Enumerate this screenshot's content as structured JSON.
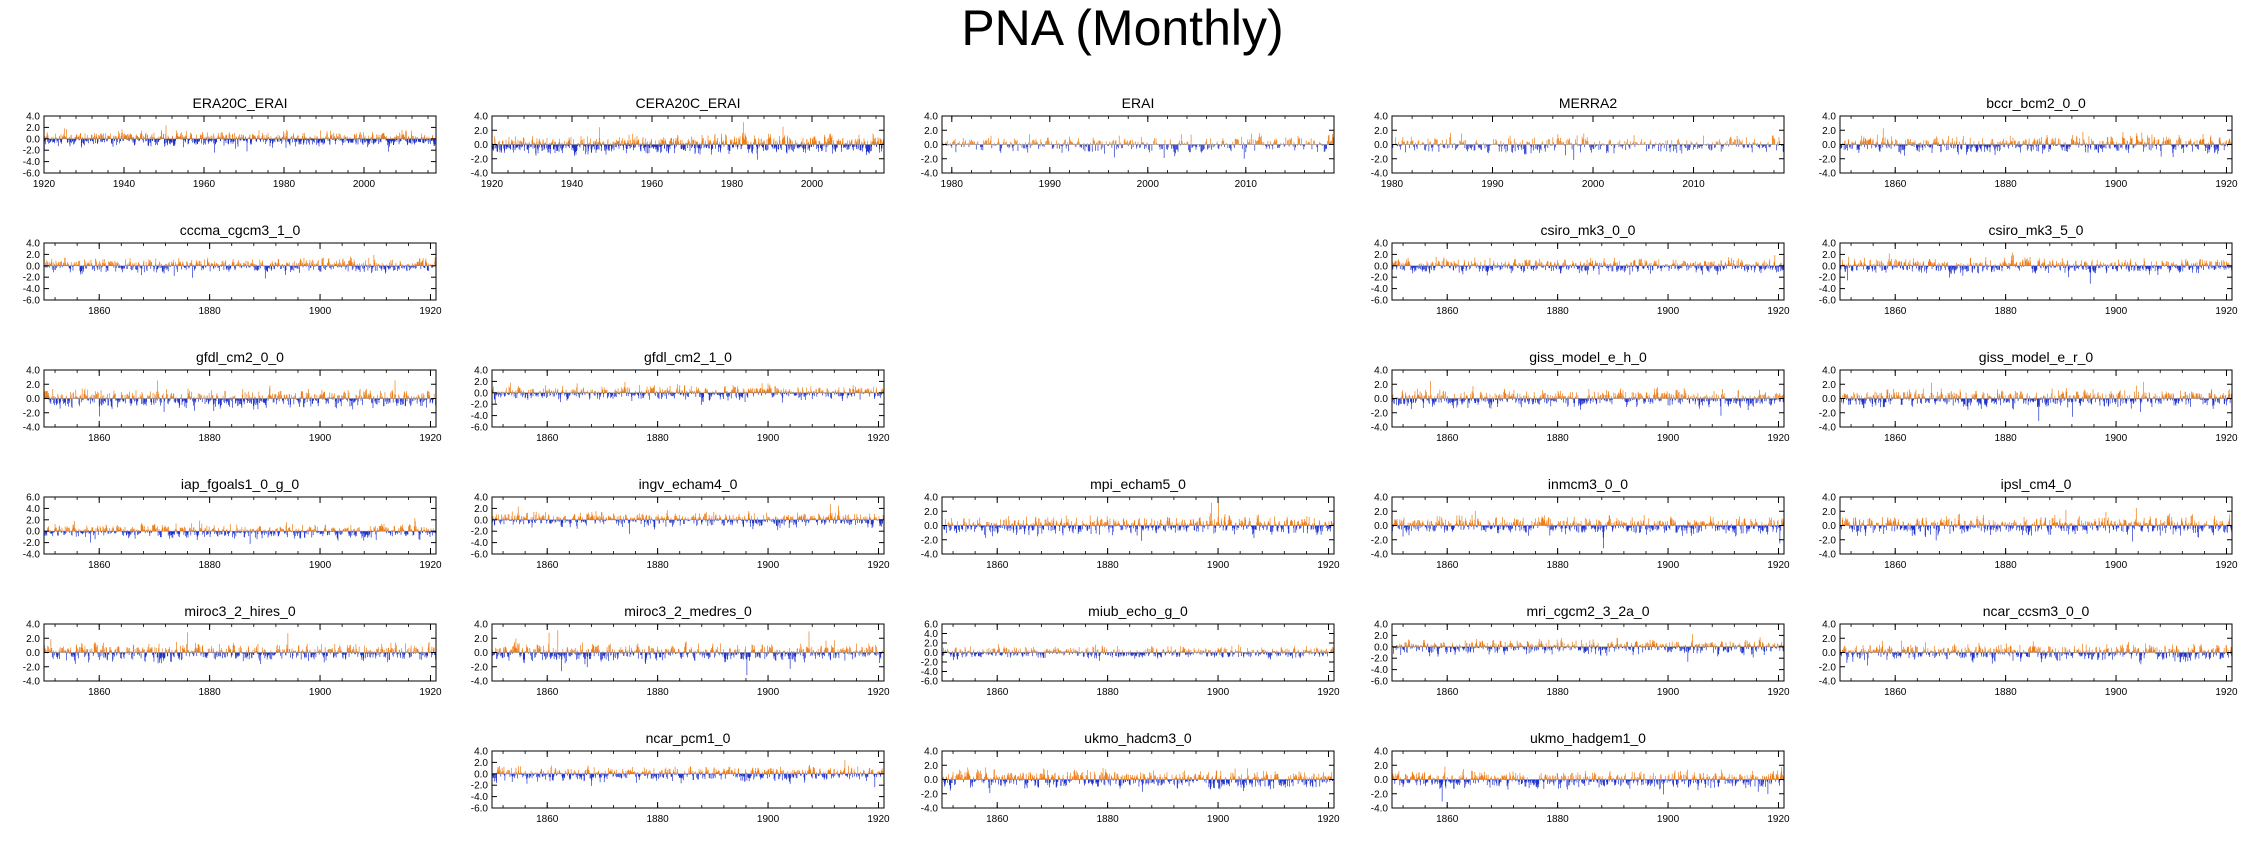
{
  "title": "PNA (Monthly)",
  "colors": {
    "positive": "#ef7d14",
    "negative": "#2233cc",
    "frame": "#000000"
  },
  "chart_data": [
    {
      "type": "bar",
      "title": "ERA20C_ERAI",
      "start_year": 1920,
      "end_year": 2017,
      "ylim": [
        -6,
        4
      ],
      "yticks": [
        "4.0",
        "2.0",
        "0.0",
        "-2.0",
        "-4.0",
        "-6.0"
      ],
      "xticks": [
        "1920",
        "1940",
        "1960",
        "1980",
        "2000"
      ],
      "xtick_years": [
        1920,
        1940,
        1960,
        1980,
        2000
      ]
    },
    {
      "type": "bar",
      "title": "CERA20C_ERAI",
      "start_year": 1920,
      "end_year": 2017,
      "ylim": [
        -4,
        4
      ],
      "yticks": [
        "4.0",
        "2.0",
        "0.0",
        "-2.0",
        "-4.0"
      ],
      "xticks": [
        "1920",
        "1940",
        "1960",
        "1980",
        "2000"
      ],
      "xtick_years": [
        1920,
        1940,
        1960,
        1980,
        2000
      ]
    },
    {
      "type": "bar",
      "title": "ERAI",
      "start_year": 1979,
      "end_year": 2018,
      "ylim": [
        -4,
        4
      ],
      "yticks": [
        "4.0",
        "2.0",
        "0.0",
        "-2.0",
        "-4.0"
      ],
      "xticks": [
        "1980",
        "1990",
        "2000",
        "2010"
      ],
      "xtick_years": [
        1980,
        1990,
        2000,
        2010
      ]
    },
    {
      "type": "bar",
      "title": "MERRA2",
      "start_year": 1980,
      "end_year": 2018,
      "ylim": [
        -4,
        4
      ],
      "yticks": [
        "4.0",
        "2.0",
        "0.0",
        "-2.0",
        "-4.0"
      ],
      "xticks": [
        "1980",
        "1990",
        "2000",
        "2010"
      ],
      "xtick_years": [
        1980,
        1990,
        2000,
        2010
      ]
    },
    {
      "type": "bar",
      "title": "bccr_bcm2_0_0",
      "start_year": 1850,
      "end_year": 1920,
      "ylim": [
        -4,
        4
      ],
      "yticks": [
        "4.0",
        "2.0",
        "0.0",
        "-2.0",
        "-4.0"
      ],
      "xticks": [
        "1860",
        "1880",
        "1900",
        "1920"
      ],
      "xtick_years": [
        1860,
        1880,
        1900,
        1920
      ]
    },
    {
      "type": "bar",
      "title": "cccma_cgcm3_1_0",
      "start_year": 1850,
      "end_year": 1920,
      "ylim": [
        -6,
        4
      ],
      "yticks": [
        "4.0",
        "2.0",
        "0.0",
        "-2.0",
        "-4.0",
        "-6.0"
      ],
      "xticks": [
        "1860",
        "1880",
        "1900",
        "1920"
      ],
      "xtick_years": [
        1860,
        1880,
        1900,
        1920
      ]
    },
    {
      "type": "bar",
      "title": "csiro_mk3_0_0",
      "start_year": 1850,
      "end_year": 1920,
      "ylim": [
        -6,
        4
      ],
      "yticks": [
        "4.0",
        "2.0",
        "0.0",
        "-2.0",
        "-4.0",
        "-6.0"
      ],
      "xticks": [
        "1860",
        "1880",
        "1900",
        "1920"
      ],
      "xtick_years": [
        1860,
        1880,
        1900,
        1920
      ]
    },
    {
      "type": "bar",
      "title": "csiro_mk3_5_0",
      "start_year": 1850,
      "end_year": 1920,
      "ylim": [
        -6,
        4
      ],
      "yticks": [
        "4.0",
        "2.0",
        "0.0",
        "-2.0",
        "-4.0",
        "-6.0"
      ],
      "xticks": [
        "1860",
        "1880",
        "1900",
        "1920"
      ],
      "xtick_years": [
        1860,
        1880,
        1900,
        1920
      ]
    },
    {
      "type": "bar",
      "title": "gfdl_cm2_0_0",
      "start_year": 1850,
      "end_year": 1920,
      "ylim": [
        -4,
        4
      ],
      "yticks": [
        "4.0",
        "2.0",
        "0.0",
        "-2.0",
        "-4.0"
      ],
      "xticks": [
        "1860",
        "1880",
        "1900",
        "1920"
      ],
      "xtick_years": [
        1860,
        1880,
        1900,
        1920
      ]
    },
    {
      "type": "bar",
      "title": "gfdl_cm2_1_0",
      "start_year": 1850,
      "end_year": 1920,
      "ylim": [
        -6,
        4
      ],
      "yticks": [
        "4.0",
        "2.0",
        "0.0",
        "-2.0",
        "-4.0",
        "-6.0"
      ],
      "xticks": [
        "1860",
        "1880",
        "1900",
        "1920"
      ],
      "xtick_years": [
        1860,
        1880,
        1900,
        1920
      ]
    },
    {
      "type": "bar",
      "title": "giss_model_e_h_0",
      "start_year": 1850,
      "end_year": 1920,
      "ylim": [
        -4,
        4
      ],
      "yticks": [
        "4.0",
        "2.0",
        "0.0",
        "-2.0",
        "-4.0"
      ],
      "xticks": [
        "1860",
        "1880",
        "1900",
        "1920"
      ],
      "xtick_years": [
        1860,
        1880,
        1900,
        1920
      ]
    },
    {
      "type": "bar",
      "title": "giss_model_e_r_0",
      "start_year": 1850,
      "end_year": 1920,
      "ylim": [
        -4,
        4
      ],
      "yticks": [
        "4.0",
        "2.0",
        "0.0",
        "-2.0",
        "-4.0"
      ],
      "xticks": [
        "1860",
        "1880",
        "1900",
        "1920"
      ],
      "xtick_years": [
        1860,
        1880,
        1900,
        1920
      ]
    },
    {
      "type": "bar",
      "title": "iap_fgoals1_0_g_0",
      "start_year": 1850,
      "end_year": 1920,
      "ylim": [
        -4,
        6
      ],
      "yticks": [
        "6.0",
        "4.0",
        "2.0",
        "0.0",
        "-2.0",
        "-4.0"
      ],
      "xticks": [
        "1860",
        "1880",
        "1900",
        "1920"
      ],
      "xtick_years": [
        1860,
        1880,
        1900,
        1920
      ]
    },
    {
      "type": "bar",
      "title": "ingv_echam4_0",
      "start_year": 1850,
      "end_year": 1920,
      "ylim": [
        -6,
        4
      ],
      "yticks": [
        "4.0",
        "2.0",
        "0.0",
        "-2.0",
        "-4.0",
        "-6.0"
      ],
      "xticks": [
        "1860",
        "1880",
        "1900",
        "1920"
      ],
      "xtick_years": [
        1860,
        1880,
        1900,
        1920
      ]
    },
    {
      "type": "bar",
      "title": "mpi_echam5_0",
      "start_year": 1850,
      "end_year": 1920,
      "ylim": [
        -4,
        4
      ],
      "yticks": [
        "4.0",
        "2.0",
        "0.0",
        "-2.0",
        "-4.0"
      ],
      "xticks": [
        "1860",
        "1880",
        "1900",
        "1920"
      ],
      "xtick_years": [
        1860,
        1880,
        1900,
        1920
      ]
    },
    {
      "type": "bar",
      "title": "inmcm3_0_0",
      "start_year": 1850,
      "end_year": 1920,
      "ylim": [
        -4,
        4
      ],
      "yticks": [
        "4.0",
        "2.0",
        "0.0",
        "-2.0",
        "-4.0"
      ],
      "xticks": [
        "1860",
        "1880",
        "1900",
        "1920"
      ],
      "xtick_years": [
        1860,
        1880,
        1900,
        1920
      ]
    },
    {
      "type": "bar",
      "title": "ipsl_cm4_0",
      "start_year": 1850,
      "end_year": 1920,
      "ylim": [
        -4,
        4
      ],
      "yticks": [
        "4.0",
        "2.0",
        "0.0",
        "-2.0",
        "-4.0"
      ],
      "xticks": [
        "1860",
        "1880",
        "1900",
        "1920"
      ],
      "xtick_years": [
        1860,
        1880,
        1900,
        1920
      ]
    },
    {
      "type": "bar",
      "title": "miroc3_2_hires_0",
      "start_year": 1850,
      "end_year": 1920,
      "ylim": [
        -4,
        4
      ],
      "yticks": [
        "4.0",
        "2.0",
        "0.0",
        "-2.0",
        "-4.0"
      ],
      "xticks": [
        "1860",
        "1880",
        "1900",
        "1920"
      ],
      "xtick_years": [
        1860,
        1880,
        1900,
        1920
      ]
    },
    {
      "type": "bar",
      "title": "miroc3_2_medres_0",
      "start_year": 1850,
      "end_year": 1920,
      "ylim": [
        -4,
        4
      ],
      "yticks": [
        "4.0",
        "2.0",
        "0.0",
        "-2.0",
        "-4.0"
      ],
      "xticks": [
        "1860",
        "1880",
        "1900",
        "1920"
      ],
      "xtick_years": [
        1860,
        1880,
        1900,
        1920
      ]
    },
    {
      "type": "bar",
      "title": "miub_echo_g_0",
      "start_year": 1850,
      "end_year": 1920,
      "ylim": [
        -6,
        6
      ],
      "yticks": [
        "6.0",
        "4.0",
        "2.0",
        "0.0",
        "-2.0",
        "-4.0",
        "-6.0"
      ],
      "xticks": [
        "1860",
        "1880",
        "1900",
        "1920"
      ],
      "xtick_years": [
        1860,
        1880,
        1900,
        1920
      ]
    },
    {
      "type": "bar",
      "title": "mri_cgcm2_3_2a_0",
      "start_year": 1850,
      "end_year": 1920,
      "ylim": [
        -6,
        4
      ],
      "yticks": [
        "4.0",
        "2.0",
        "0.0",
        "-2.0",
        "-4.0",
        "-6.0"
      ],
      "xticks": [
        "1860",
        "1880",
        "1900",
        "1920"
      ],
      "xtick_years": [
        1860,
        1880,
        1900,
        1920
      ]
    },
    {
      "type": "bar",
      "title": "ncar_ccsm3_0_0",
      "start_year": 1850,
      "end_year": 1920,
      "ylim": [
        -4,
        4
      ],
      "yticks": [
        "4.0",
        "2.0",
        "0.0",
        "-2.0",
        "-4.0"
      ],
      "xticks": [
        "1860",
        "1880",
        "1900",
        "1920"
      ],
      "xtick_years": [
        1860,
        1880,
        1900,
        1920
      ]
    },
    {
      "type": "bar",
      "title": "ncar_pcm1_0",
      "start_year": 1850,
      "end_year": 1920,
      "ylim": [
        -6,
        4
      ],
      "yticks": [
        "4.0",
        "2.0",
        "0.0",
        "-2.0",
        "-4.0",
        "-6.0"
      ],
      "xticks": [
        "1860",
        "1880",
        "1900",
        "1920"
      ],
      "xtick_years": [
        1860,
        1880,
        1900,
        1920
      ]
    },
    {
      "type": "bar",
      "title": "ukmo_hadcm3_0",
      "start_year": 1850,
      "end_year": 1920,
      "ylim": [
        -4,
        4
      ],
      "yticks": [
        "4.0",
        "2.0",
        "0.0",
        "-2.0",
        "-4.0"
      ],
      "xticks": [
        "1860",
        "1880",
        "1900",
        "1920"
      ],
      "xtick_years": [
        1860,
        1880,
        1900,
        1920
      ]
    },
    {
      "type": "bar",
      "title": "ukmo_hadgem1_0",
      "start_year": 1850,
      "end_year": 1920,
      "ylim": [
        -4,
        4
      ],
      "yticks": [
        "4.0",
        "2.0",
        "0.0",
        "-2.0",
        "-4.0"
      ],
      "xticks": [
        "1860",
        "1880",
        "1900",
        "1920"
      ],
      "xtick_years": [
        1860,
        1880,
        1900,
        1920
      ]
    }
  ]
}
